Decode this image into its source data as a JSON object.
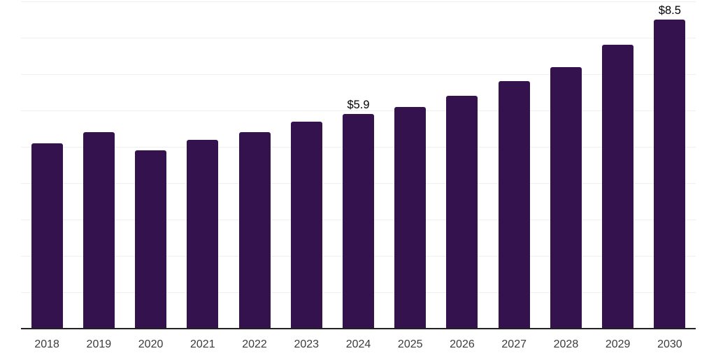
{
  "chart_data": {
    "type": "bar",
    "categories": [
      "2018",
      "2019",
      "2020",
      "2021",
      "2022",
      "2023",
      "2024",
      "2025",
      "2026",
      "2027",
      "2028",
      "2029",
      "2030"
    ],
    "values": [
      5.1,
      5.4,
      4.9,
      5.2,
      5.4,
      5.7,
      5.9,
      6.1,
      6.4,
      6.8,
      7.2,
      7.8,
      8.5
    ],
    "data_labels": {
      "2024": "$5.9",
      "2030": "$8.5"
    },
    "title": "",
    "xlabel": "",
    "ylabel": "",
    "ylim": [
      0,
      9
    ],
    "grid": "horizontal",
    "gridline_step": 1,
    "legend": "none",
    "colors": {
      "bar": "#33124E",
      "gridline": "#EFEFEF",
      "axis": "#222222",
      "x_label": "#3B3B3B",
      "data_label": "#000000",
      "background": "#FFFFFF"
    }
  }
}
